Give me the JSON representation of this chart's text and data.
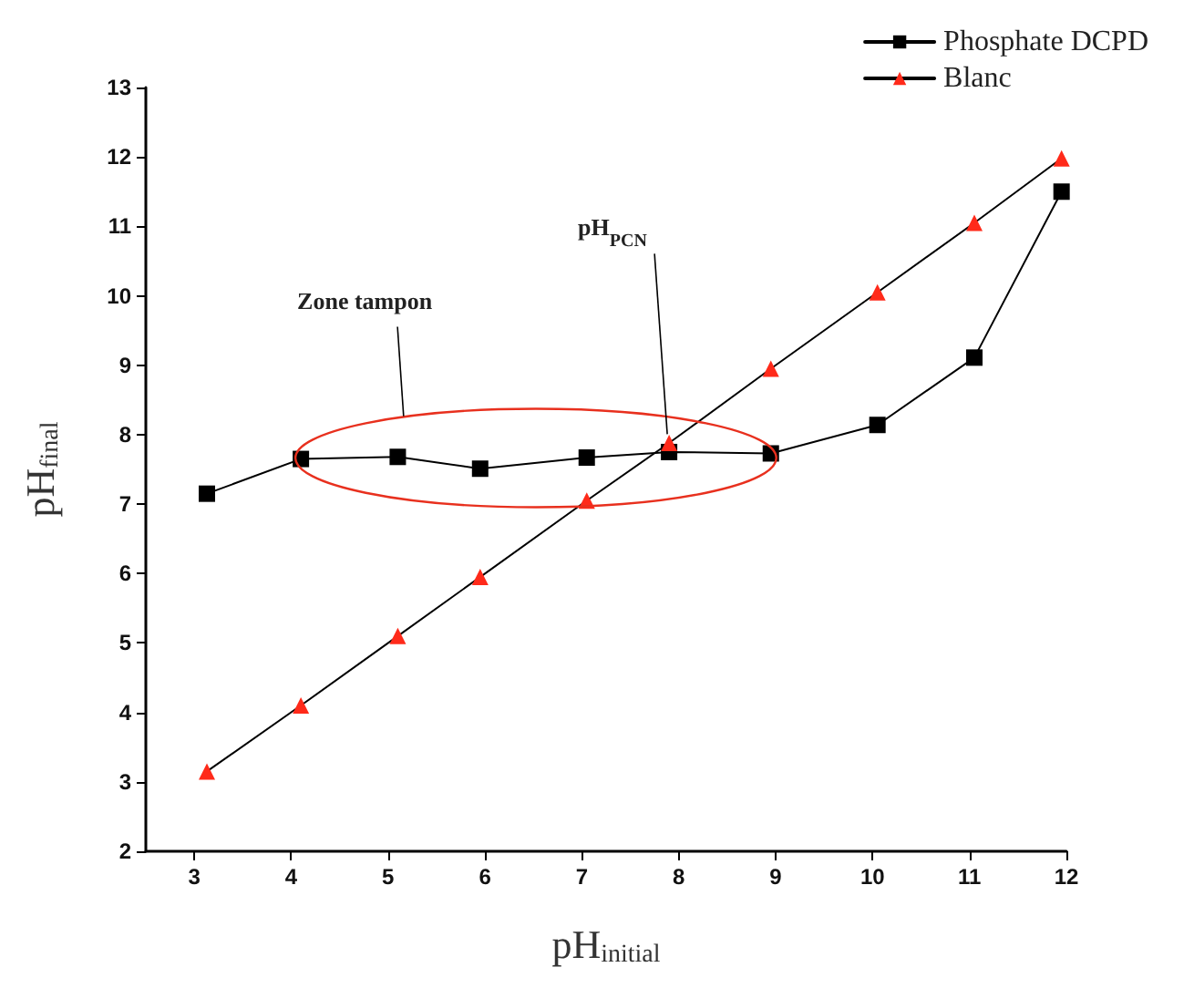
{
  "chart_data": {
    "type": "line",
    "xlabel": "pH$_{initial}$",
    "ylabel": "pH$_{final}$",
    "xlim": [
      2.5,
      12
    ],
    "xticks": [
      3,
      4,
      5,
      6,
      7,
      8,
      9,
      10,
      11,
      12
    ],
    "ylim": [
      2,
      13
    ],
    "yticks": [
      2,
      3,
      4,
      5,
      6,
      7,
      8,
      9,
      10,
      11,
      12,
      13
    ],
    "series": [
      {
        "name": "Phosphate DCPD",
        "color": "#000000",
        "marker": "square",
        "x": [
          3.13,
          4.1,
          5.1,
          5.95,
          7.05,
          7.9,
          8.95,
          10.05,
          11.05,
          11.95
        ],
        "values": [
          7.15,
          7.65,
          7.68,
          7.51,
          7.67,
          7.75,
          7.73,
          8.14,
          9.11,
          11.5
        ]
      },
      {
        "name": "Blanc",
        "color": "#ff2a1a",
        "marker": "triangle",
        "x": [
          3.13,
          4.1,
          5.1,
          5.95,
          7.05,
          7.9,
          8.95,
          10.05,
          11.05,
          11.95
        ],
        "values": [
          3.15,
          4.1,
          5.1,
          5.95,
          7.05,
          7.88,
          8.95,
          10.05,
          11.05,
          11.98
        ]
      }
    ],
    "annotations": [
      "Zone tampon",
      {
        "text": "pH$_{PCN}$",
        "x": 7.9,
        "y": 7.85
      }
    ],
    "legend": "top right",
    "grid": false,
    "line_style": "solid"
  }
}
